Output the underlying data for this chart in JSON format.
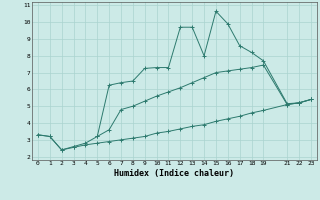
{
  "xlabel": "Humidex (Indice chaleur)",
  "bg_color": "#cceae7",
  "line_color": "#2d7a6e",
  "grid_color": "#aad4cf",
  "xlim": [
    -0.5,
    23.5
  ],
  "ylim": [
    1.8,
    11.2
  ],
  "xticks": [
    0,
    1,
    2,
    3,
    4,
    5,
    6,
    7,
    8,
    9,
    10,
    11,
    12,
    13,
    14,
    15,
    16,
    17,
    18,
    19,
    21,
    22,
    23
  ],
  "yticks": [
    2,
    3,
    4,
    5,
    6,
    7,
    8,
    9,
    10,
    11
  ],
  "line1_x": [
    0,
    1,
    2,
    3,
    4,
    5,
    6,
    7,
    8,
    9,
    10,
    11,
    12,
    13,
    14,
    15,
    16,
    17,
    18,
    19,
    21,
    22,
    23
  ],
  "line1_y": [
    3.3,
    3.2,
    2.4,
    2.55,
    2.7,
    2.8,
    2.9,
    3.0,
    3.1,
    3.2,
    3.4,
    3.5,
    3.65,
    3.8,
    3.9,
    4.1,
    4.25,
    4.4,
    4.6,
    4.75,
    5.1,
    5.2,
    5.4
  ],
  "line2_x": [
    0,
    1,
    2,
    3,
    4,
    5,
    6,
    7,
    8,
    9,
    10,
    11,
    12,
    13,
    14,
    15,
    16,
    17,
    18,
    19,
    21,
    22,
    23
  ],
  "line2_y": [
    3.3,
    3.2,
    2.4,
    2.6,
    2.8,
    3.2,
    3.6,
    4.8,
    5.0,
    5.3,
    5.6,
    5.85,
    6.1,
    6.4,
    6.7,
    7.0,
    7.1,
    7.2,
    7.3,
    7.45,
    5.1,
    5.2,
    5.4
  ],
  "line3_x": [
    5,
    6,
    7,
    8,
    9,
    10,
    11,
    12,
    13,
    14,
    15,
    16,
    17,
    18,
    19,
    21,
    22,
    23
  ],
  "line3_y": [
    3.2,
    6.25,
    6.4,
    6.5,
    7.25,
    7.3,
    7.3,
    9.7,
    9.7,
    8.0,
    10.65,
    9.9,
    8.6,
    8.2,
    7.7,
    5.15,
    5.2,
    5.4
  ]
}
